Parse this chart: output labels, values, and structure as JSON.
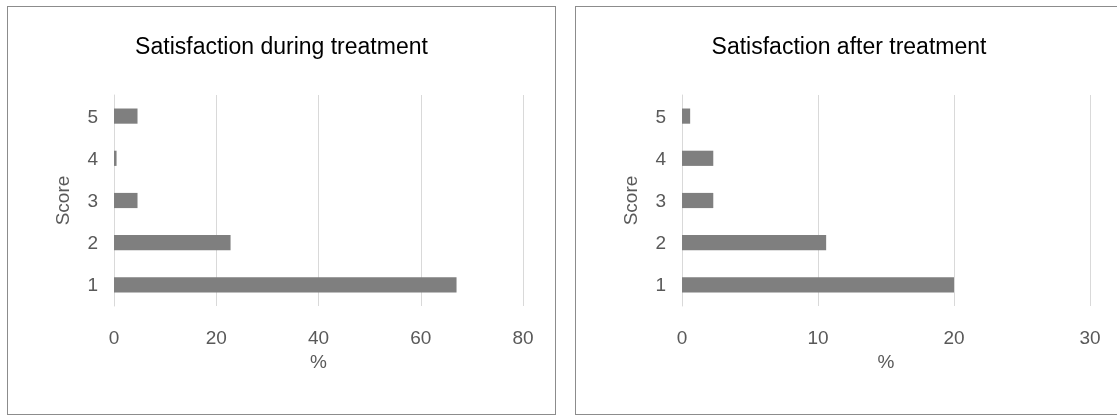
{
  "chart_data": [
    {
      "type": "bar",
      "orientation": "horizontal",
      "title": "Satisfaction during treatment",
      "xlabel": "%",
      "ylabel": "Score",
      "categories": [
        "5",
        "4",
        "3",
        "2",
        "1"
      ],
      "values": [
        4.6,
        0.5,
        4.6,
        22.8,
        67.0
      ],
      "color": "#7f7f7f",
      "xlim": [
        0,
        80
      ],
      "xticks": [
        0,
        20,
        40,
        60,
        80
      ],
      "grid": "x"
    },
    {
      "type": "bar",
      "orientation": "horizontal",
      "title": "Satisfaction after treatment",
      "xlabel": "%",
      "ylabel": "Score",
      "categories": [
        "5",
        "4",
        "3",
        "2",
        "1"
      ],
      "values": [
        0.6,
        2.3,
        2.3,
        10.6,
        20.0
      ],
      "color": "#7f7f7f",
      "xlim": [
        0,
        30
      ],
      "xticks": [
        0,
        10,
        20,
        30
      ],
      "grid": "x"
    }
  ]
}
